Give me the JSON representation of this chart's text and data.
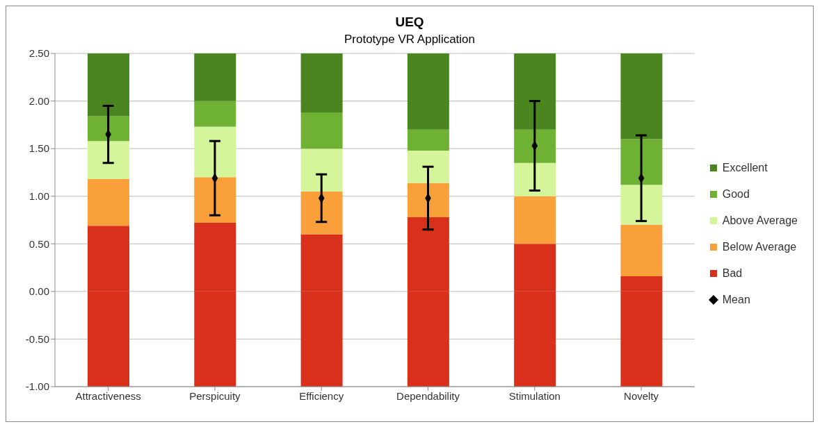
{
  "chart_data": {
    "type": "bar",
    "title": "UEQ",
    "subtitle": "Prototype VR Application",
    "stacked": true,
    "categories": [
      "Attractiveness",
      "Perspicuity",
      "Efficiency",
      "Dependability",
      "Stimulation",
      "Novelty"
    ],
    "series": [
      {
        "color": "#d9301c",
        "values": [
          -1,
          -1,
          -1,
          -1,
          -1,
          -1
        ]
      },
      {
        "name": "Bad",
        "color": "#d9301c",
        "values": [
          0.69,
          0.72,
          0.6,
          0.78,
          0.5,
          0.16
        ]
      },
      {
        "name": "Below Average",
        "color": "#f9a03a",
        "values": [
          0.49,
          0.48,
          0.45,
          0.36,
          0.5,
          0.54
        ]
      },
      {
        "name": "Above Average",
        "color": "#d5f59a",
        "values": [
          0.4,
          0.53,
          0.45,
          0.34,
          0.35,
          0.42
        ]
      },
      {
        "name": "Good",
        "color": "#6fb132",
        "values": [
          0.26,
          0.27,
          0.38,
          0.22,
          0.35,
          0.48
        ]
      },
      {
        "name": "Excellent",
        "color": "#4a8520",
        "values": [
          0.66,
          0.5,
          0.62,
          0.8,
          0.8,
          0.9
        ]
      },
      {
        "name": "Mean",
        "type": "scatter",
        "color": "#000000",
        "marker": "diamond",
        "x": [
          "Attractiveness",
          "Perspicuity",
          "Efficiency",
          "Dependability",
          "Stimulation",
          "Novelty"
        ],
        "values": [
          1.65,
          1.19,
          0.98,
          0.98,
          1.53,
          1.19
        ],
        "errors": [
          0.3,
          0.39,
          0.25,
          0.33,
          0.47,
          0.45
        ]
      }
    ],
    "ylim": [
      -1,
      2.5
    ],
    "yticks": [
      {
        "value": -1,
        "label": "-1.00"
      },
      {
        "value": -0.5,
        "label": "-0.50"
      },
      {
        "value": 0,
        "label": "0.00"
      },
      {
        "value": 0.5,
        "label": "0.50"
      },
      {
        "value": 1,
        "label": "1.00"
      },
      {
        "value": 1.5,
        "label": "1.50"
      },
      {
        "value": 2,
        "label": "2.00"
      },
      {
        "value": 2.5,
        "label": "2.50"
      }
    ],
    "grid": "y",
    "legend": "right"
  }
}
